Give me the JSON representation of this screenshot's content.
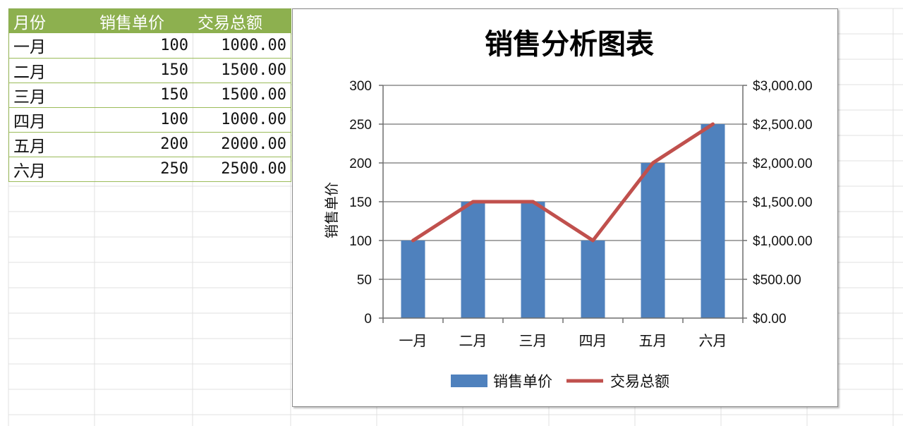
{
  "table": {
    "headers": [
      "月份",
      "销售单价",
      "交易总额"
    ],
    "rows": [
      [
        "一月",
        "100",
        "1000.00"
      ],
      [
        "二月",
        "150",
        "1500.00"
      ],
      [
        "三月",
        "150",
        "1500.00"
      ],
      [
        "四月",
        "100",
        "1000.00"
      ],
      [
        "五月",
        "200",
        "2000.00"
      ],
      [
        "六月",
        "250",
        "2500.00"
      ]
    ]
  },
  "colors": {
    "bar": "#4f81bd",
    "line": "#c0504d",
    "header_bg": "#8db04f",
    "gridline": "#8c8c8c"
  },
  "chart_data": {
    "type": "bar",
    "title": "销售分析图表",
    "categories": [
      "一月",
      "二月",
      "三月",
      "四月",
      "五月",
      "六月"
    ],
    "ylabel": "销售单价",
    "ylim": [
      0,
      300
    ],
    "y_ticks": [
      "0",
      "50",
      "100",
      "150",
      "200",
      "250",
      "300"
    ],
    "y2lim": [
      0,
      3000
    ],
    "y2_ticks": [
      "$0.00",
      "$500.00",
      "$1,000.00",
      "$1,500.00",
      "$2,000.00",
      "$2,500.00",
      "$3,000.00"
    ],
    "grid": true,
    "legend": "bottom",
    "series": [
      {
        "name": "销售单价",
        "type": "bar",
        "axis": "left",
        "values": [
          100,
          150,
          150,
          100,
          200,
          250
        ]
      },
      {
        "name": "交易总额",
        "type": "line",
        "axis": "right",
        "values": [
          1000,
          1500,
          1500,
          1000,
          2000,
          2500
        ]
      }
    ]
  }
}
